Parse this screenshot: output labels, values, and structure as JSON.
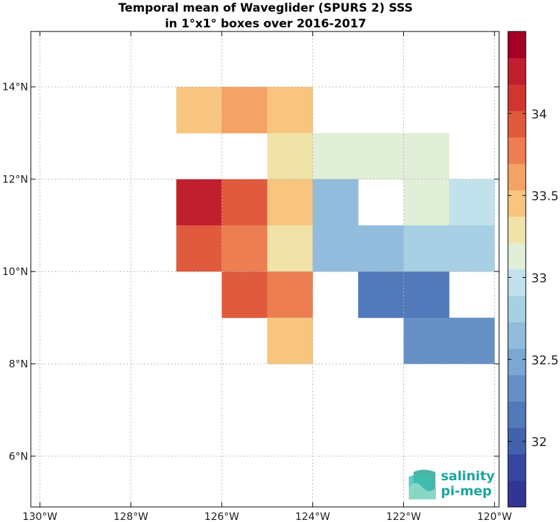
{
  "title_lines": [
    "Temporal mean of Waveglider (SPURS 2) SSS",
    "in 1°x1° boxes over 2016-2017"
  ],
  "logo": {
    "line1": "salinity",
    "line2": "pi-mep",
    "icon": "salinity-waves-logo-icon"
  },
  "chart_data": {
    "type": "heatmap",
    "title": "Temporal mean of Waveglider (SPURS 2) SSS in 1°x1° boxes over 2016-2017",
    "x_range": [
      -130.2,
      -119.9
    ],
    "y_range": [
      4.9,
      15.2
    ],
    "x_ticks": [
      {
        "value": -130,
        "label": "130°W"
      },
      {
        "value": -128,
        "label": "128°W"
      },
      {
        "value": -126,
        "label": "126°W"
      },
      {
        "value": -124,
        "label": "124°W"
      },
      {
        "value": -122,
        "label": "122°W"
      },
      {
        "value": -120,
        "label": "120°W"
      }
    ],
    "y_ticks": [
      {
        "value": 6,
        "label": "6°N"
      },
      {
        "value": 8,
        "label": "8°N"
      },
      {
        "value": 10,
        "label": "10°N"
      },
      {
        "value": 12,
        "label": "12°N"
      },
      {
        "value": 14,
        "label": "14°N"
      }
    ],
    "grid": true,
    "cell_size_deg": 1,
    "cells": [
      {
        "lon": -127,
        "lat": 13,
        "value": 33.44
      },
      {
        "lon": -126,
        "lat": 13,
        "value": 33.61
      },
      {
        "lon": -125,
        "lat": 13,
        "value": 33.44
      },
      {
        "lon": -125,
        "lat": 12,
        "value": 33.27
      },
      {
        "lon": -124,
        "lat": 12,
        "value": 33.1
      },
      {
        "lon": -123,
        "lat": 12,
        "value": 33.1
      },
      {
        "lon": -122,
        "lat": 12,
        "value": 33.1
      },
      {
        "lon": -127,
        "lat": 11,
        "value": 34.3
      },
      {
        "lon": -126,
        "lat": 11,
        "value": 33.95
      },
      {
        "lon": -125,
        "lat": 11,
        "value": 33.44
      },
      {
        "lon": -124,
        "lat": 11,
        "value": 32.6
      },
      {
        "lon": -122,
        "lat": 11,
        "value": 33.1
      },
      {
        "lon": -121,
        "lat": 11,
        "value": 32.93
      },
      {
        "lon": -127,
        "lat": 10,
        "value": 33.95
      },
      {
        "lon": -126,
        "lat": 10,
        "value": 33.73
      },
      {
        "lon": -125,
        "lat": 10,
        "value": 33.27
      },
      {
        "lon": -124,
        "lat": 10,
        "value": 32.6
      },
      {
        "lon": -123,
        "lat": 10,
        "value": 32.6
      },
      {
        "lon": -122,
        "lat": 10,
        "value": 32.77
      },
      {
        "lon": -121,
        "lat": 10,
        "value": 32.77
      },
      {
        "lon": -126,
        "lat": 9,
        "value": 33.95
      },
      {
        "lon": -125,
        "lat": 9,
        "value": 33.85
      },
      {
        "lon": -123,
        "lat": 9,
        "value": 32.1
      },
      {
        "lon": -122,
        "lat": 9,
        "value": 32.1
      },
      {
        "lon": -125,
        "lat": 8,
        "value": 33.44
      },
      {
        "lon": -122,
        "lat": 8,
        "value": 32.27
      },
      {
        "lon": -121,
        "lat": 8,
        "value": 32.27
      }
    ],
    "colorbar": {
      "range": [
        31.6,
        34.5
      ],
      "ticks": [
        32,
        32.5,
        33,
        33.5,
        34
      ],
      "colors": [
        "#313695",
        "#3548a0",
        "#4262ad",
        "#5279ba",
        "#6690c6",
        "#7ba7d2",
        "#92bcdc",
        "#a8d0e4",
        "#c1e2ec",
        "#e1eed8",
        "#f1e3a8",
        "#f7c57f",
        "#f4a265",
        "#ec7e51",
        "#e05a3d",
        "#d0362f",
        "#c01f2d",
        "#a50026"
      ]
    }
  }
}
